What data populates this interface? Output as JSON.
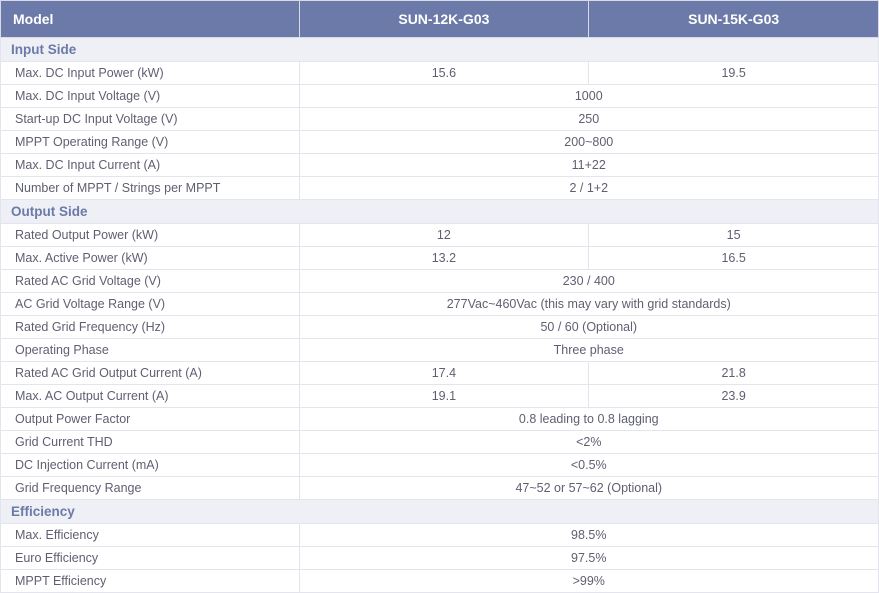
{
  "header": {
    "model_label": "Model",
    "col1": "SUN-12K-G03",
    "col2": "SUN-15K-G03"
  },
  "sections": {
    "input_side": "Input Side",
    "output_side": "Output Side",
    "efficiency": "Efficiency"
  },
  "rows": {
    "max_dc_input_power": {
      "label": "Max. DC Input Power (kW)",
      "v1": "15.6",
      "v2": "19.5"
    },
    "max_dc_input_voltage": {
      "label": "Max. DC Input Voltage (V)",
      "span": "1000"
    },
    "startup_dc_voltage": {
      "label": "Start-up DC Input Voltage (V)",
      "span": "250"
    },
    "mppt_range": {
      "label": "MPPT  Operating Range (V)",
      "span": "200~800"
    },
    "max_dc_input_current": {
      "label": "Max. DC Input Current (A)",
      "span": "11+22"
    },
    "mppt_strings": {
      "label": "Number of MPPT / Strings per MPPT",
      "span": "2 / 1+2"
    },
    "rated_output_power": {
      "label": "Rated Output Power (kW)",
      "v1": "12",
      "v2": "15"
    },
    "max_active_power": {
      "label": "Max. Active Power (kW)",
      "v1": "13.2",
      "v2": "16.5"
    },
    "rated_ac_grid_voltage": {
      "label": "Rated AC Grid Voltage (V)",
      "span": "230 / 400"
    },
    "ac_grid_voltage_range": {
      "label": "AC Grid Voltage Range (V)",
      "span": "277Vac~460Vac (this may vary with grid standards)"
    },
    "rated_grid_frequency": {
      "label": "Rated Grid Frequency (Hz)",
      "span": "50 / 60 (Optional)"
    },
    "operating_phase": {
      "label": "Operating Phase",
      "span": "Three phase"
    },
    "rated_ac_output_current": {
      "label": "Rated AC Grid Output Current (A)",
      "v1": "17.4",
      "v2": "21.8"
    },
    "max_ac_output_current": {
      "label": "Max. AC Output Current (A)",
      "v1": "19.1",
      "v2": "23.9"
    },
    "output_power_factor": {
      "label": "Output Power Factor",
      "span": "0.8 leading to 0.8 lagging"
    },
    "grid_current_thd": {
      "label": "Grid Current THD",
      "span": "<2%"
    },
    "dc_injection_current": {
      "label": "DC Injection Current (mA)",
      "span": "<0.5%"
    },
    "grid_frequency_range": {
      "label": "Grid Frequency Range",
      "span": "47~52 or 57~62 (Optional)"
    },
    "max_efficiency": {
      "label": "Max. Efficiency",
      "span": "98.5%"
    },
    "euro_efficiency": {
      "label": "Euro Efficiency",
      "span": "97.5%"
    },
    "mppt_efficiency": {
      "label": "MPPT Efficiency",
      "span": ">99%"
    }
  },
  "style": {
    "header_bg": "#6b7aa8",
    "header_fg": "#ffffff",
    "section_bg": "#eef0f6",
    "section_fg": "#6b7aa8",
    "cell_fg": "#5f5f72",
    "border_color": "#e3e5ee",
    "body_bg": "#ffffff",
    "font_family": "Segoe UI, Arial, sans-serif",
    "header_fontsize_pt": 10.5,
    "cell_fontsize_pt": 9.5,
    "section_fontsize_pt": 10
  }
}
